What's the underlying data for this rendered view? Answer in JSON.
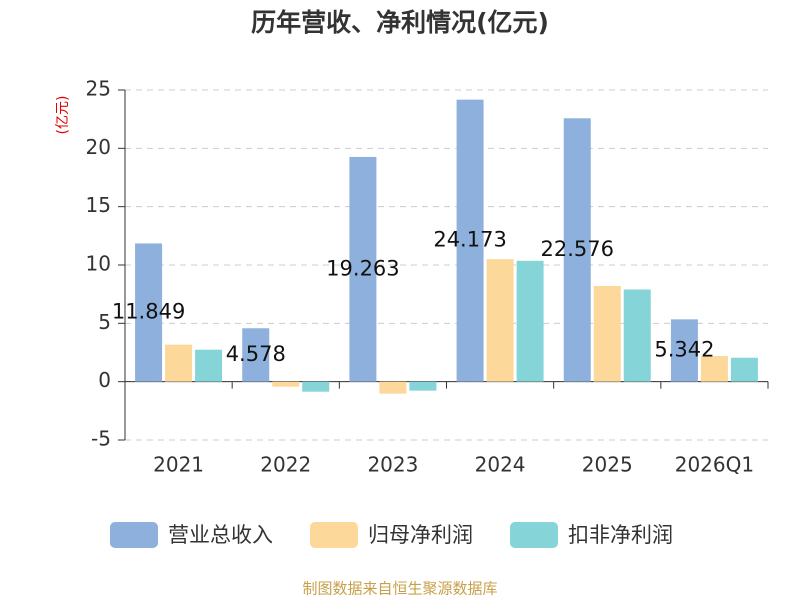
{
  "chart_data": {
    "type": "bar",
    "title": "历年营收、净利情况(亿元)",
    "y_label": "(亿元)",
    "source": "制图数据来自恒生聚源数据库",
    "categories": [
      "2021",
      "2022",
      "2023",
      "2024",
      "2025",
      "2026Q1"
    ],
    "series": [
      {
        "name": "营业总收入",
        "color": "#8eb0dc",
        "values": [
          11.849,
          4.578,
          19.263,
          24.173,
          22.576,
          5.342
        ],
        "show_labels": true
      },
      {
        "name": "归母净利润",
        "color": "#fcd89a",
        "values": [
          3.17,
          -0.43,
          -1.03,
          10.5,
          8.2,
          2.2
        ]
      },
      {
        "name": "扣非净利润",
        "color": "#85d5d8",
        "values": [
          2.74,
          -0.86,
          -0.77,
          10.36,
          7.9,
          2.05
        ]
      }
    ],
    "ylim": [
      -5,
      25
    ],
    "yticks": [
      -5,
      0,
      5,
      10,
      15,
      20,
      25
    ],
    "grid": true
  }
}
